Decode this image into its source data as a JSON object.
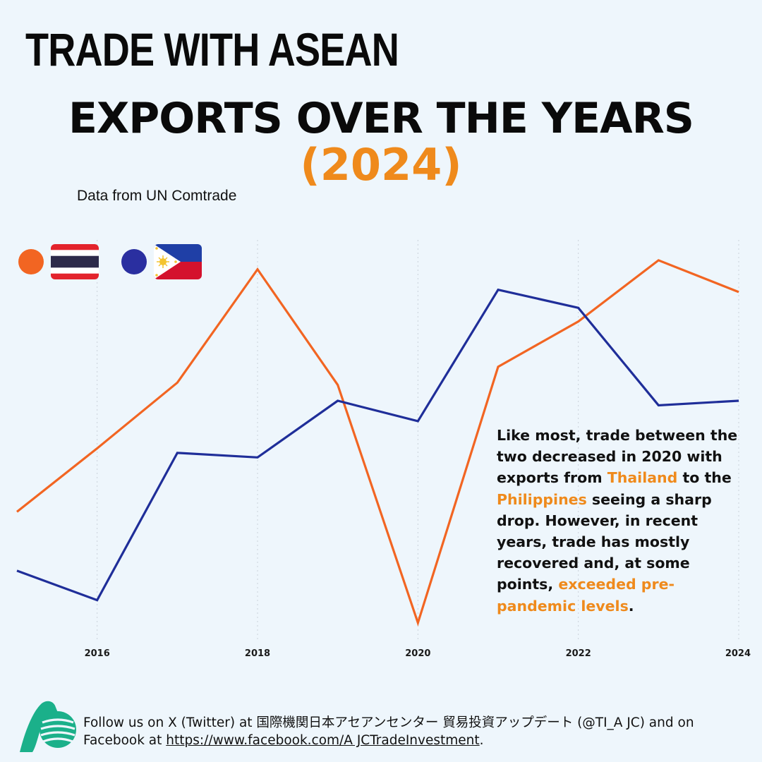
{
  "header": {
    "top_title": "TRADE WITH ASEAN",
    "main_title": "EXPORTS OVER THE YEARS",
    "year_title": "(2024)",
    "source": "Data from UN Comtrade"
  },
  "legend": {
    "items": [
      {
        "color": "#f26522",
        "flag": "thailand-flag-icon"
      },
      {
        "color": "#2a2fa0",
        "flag": "philippines-flag-icon"
      }
    ]
  },
  "chart_data": {
    "type": "line",
    "x": [
      2015,
      2016,
      2017,
      2018,
      2019,
      2020,
      2021,
      2022,
      2023,
      2024
    ],
    "xticks": [
      "2016",
      "2018",
      "2020",
      "2022",
      "2024"
    ],
    "series": [
      {
        "color": "#f26522",
        "values": [
          70,
          98,
          127,
          177,
          126,
          21,
          134,
          154,
          181,
          167
        ]
      },
      {
        "color": "#1f2e99",
        "values": [
          44,
          31,
          96,
          94,
          119,
          110,
          168,
          160,
          117,
          119
        ]
      }
    ],
    "ylim": [
      15,
      190
    ],
    "xlim": [
      2015,
      2024
    ],
    "grid": "vertical dotted at ticks",
    "y_axis_shown": false
  },
  "annotation": {
    "p1": "Like most, trade between the two decreased in 2020 with exports from ",
    "h1": "Thailand",
    "p2": " to the ",
    "h2": "Philippines",
    "p3": " seeing a sharp drop. However, in recent years, trade has mostly recovered and, at some points, ",
    "h3": "exceeded pre-pandemic levels",
    "p4": "."
  },
  "footer": {
    "t1": "Follow us on X (Twitter) at 国際機関日本アセアンセンター 貿易投資アップデート (@TI_A JC) and on Facebook at ",
    "link": "https://www.facebook.com/A JCTradeInvestment",
    "t2": "."
  },
  "colors": {
    "accent": "#ef8a1c",
    "background": "#eef6fc",
    "logo": "#1bb08a"
  }
}
